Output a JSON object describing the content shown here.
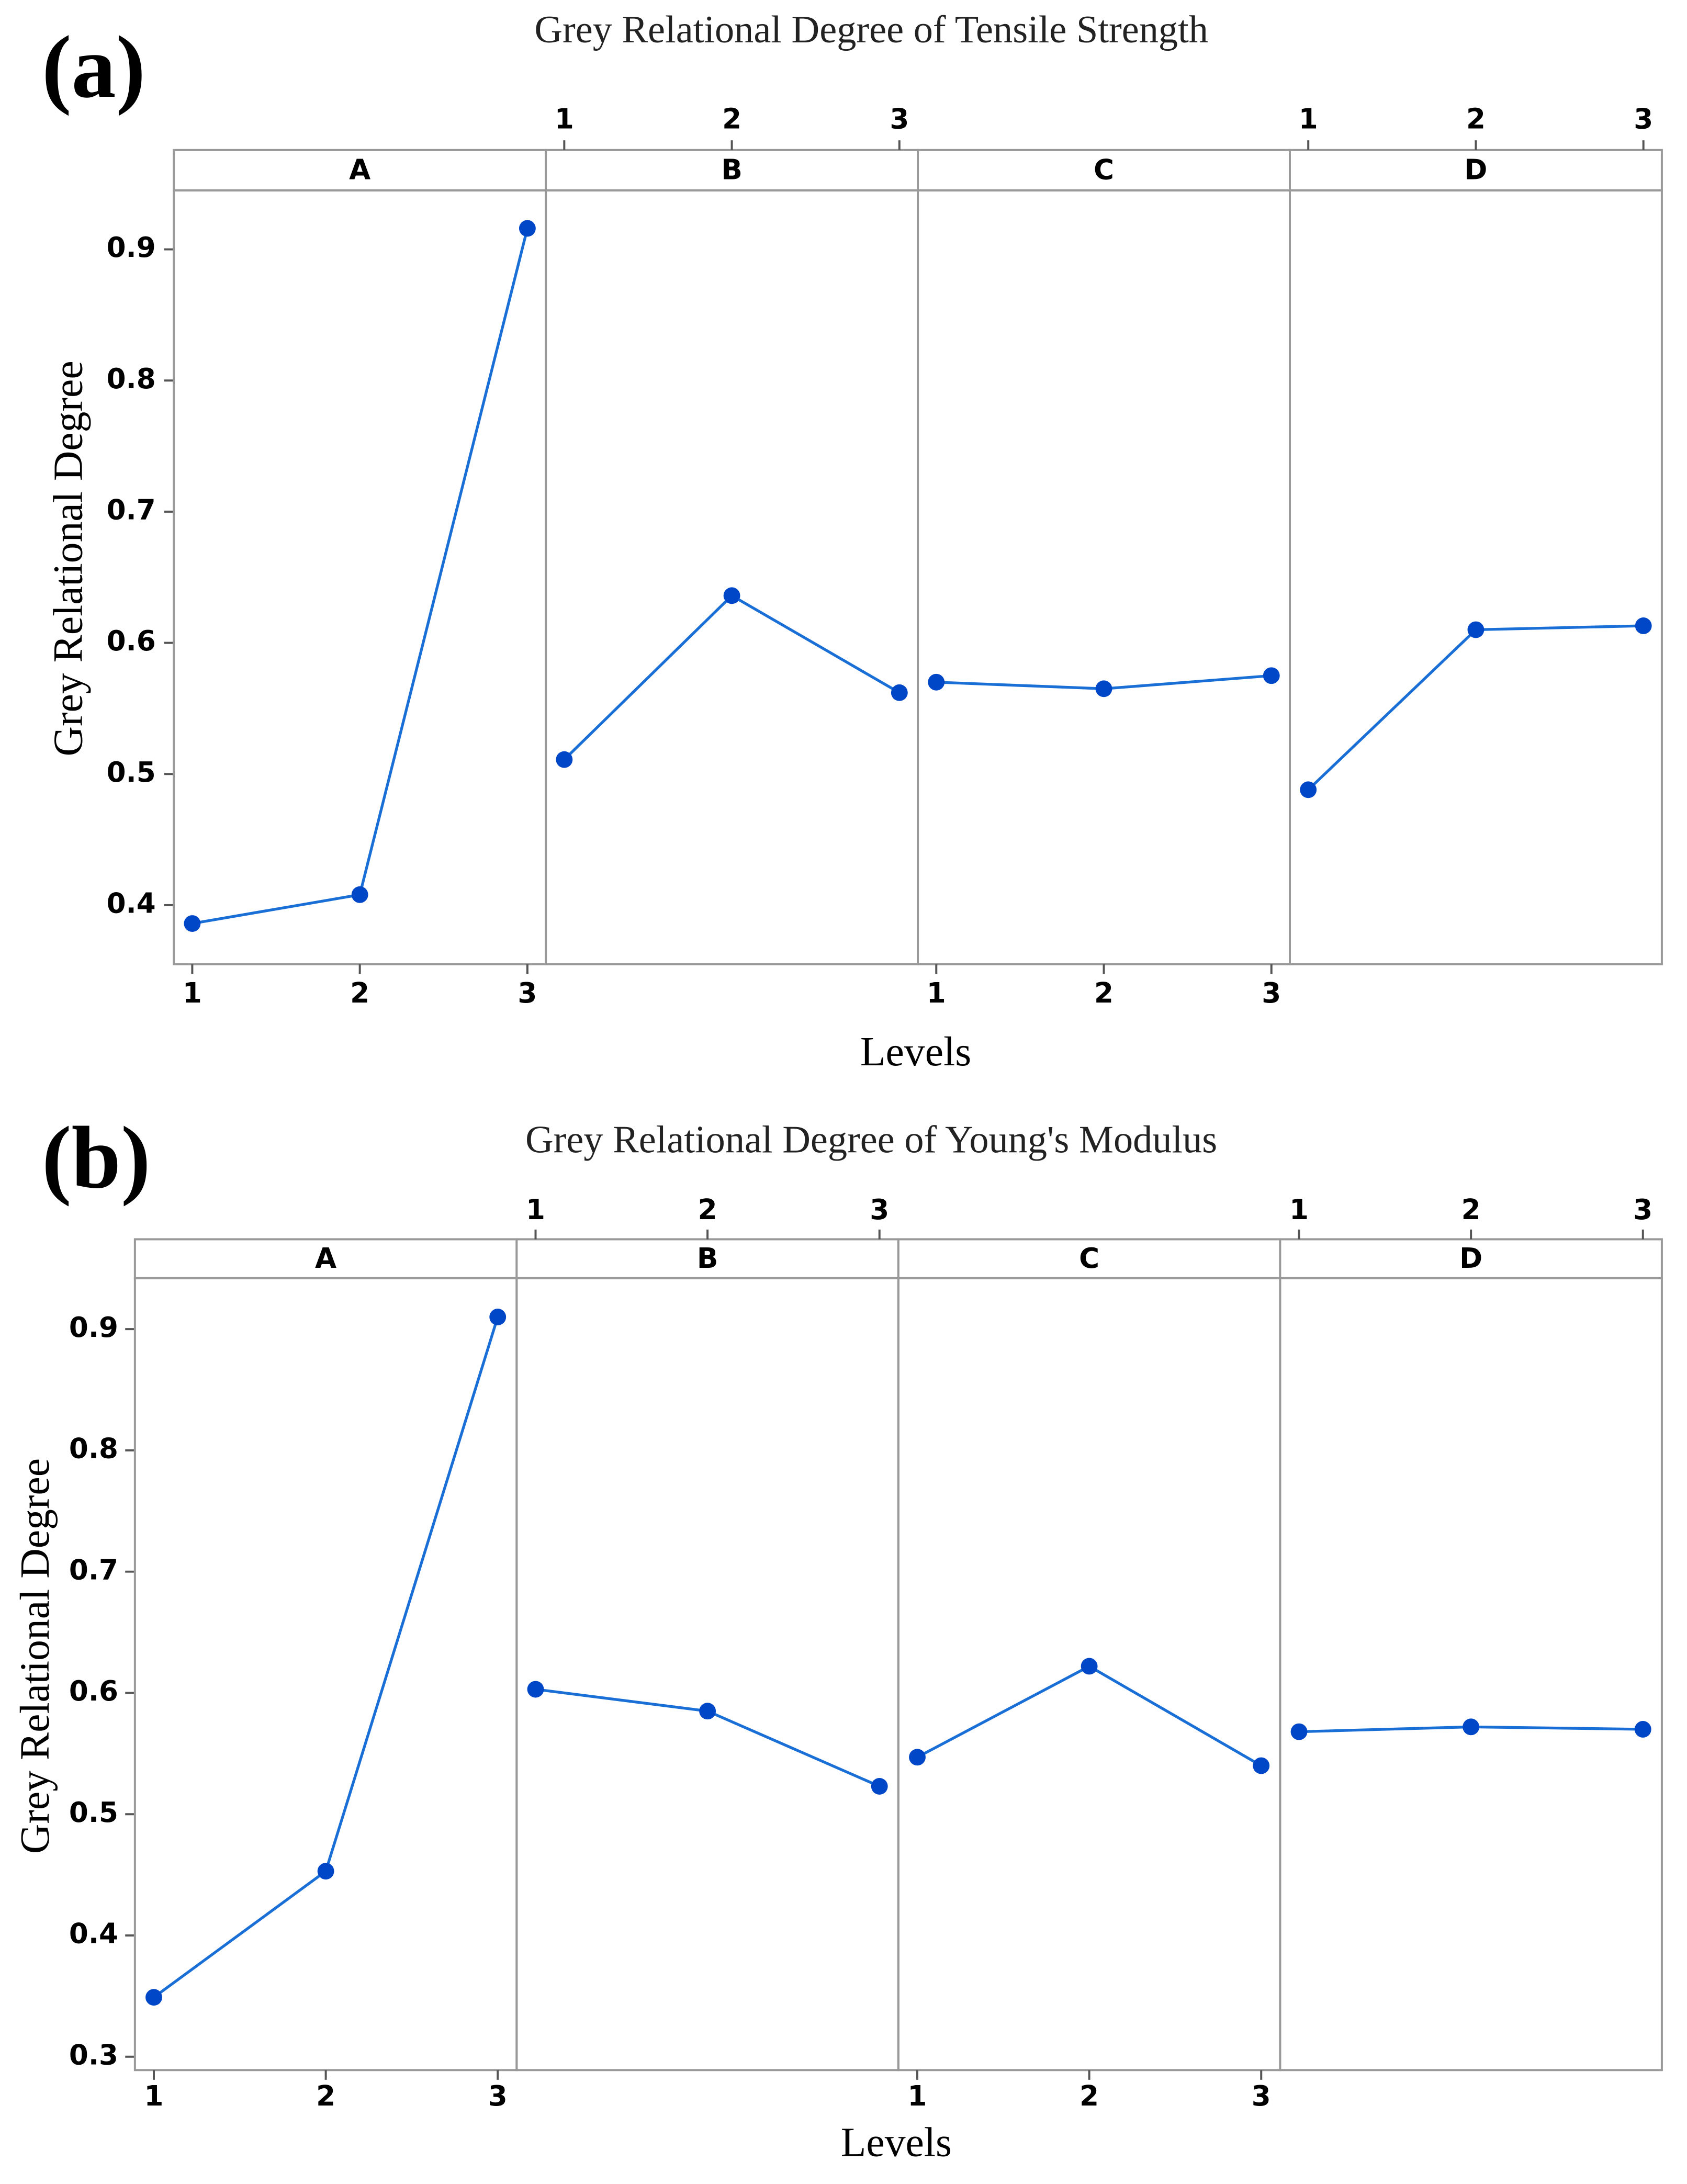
{
  "chart_data": [
    {
      "type": "line",
      "panel_label": "(a)",
      "title": "Grey Relational Degree of Tensile Strength",
      "xlabel": "Levels",
      "ylabel": "Grey Relational Degree",
      "x": [
        1,
        2,
        3
      ],
      "xticks": [
        1,
        2,
        3
      ],
      "xlim": [
        0.89,
        3.11
      ],
      "ylim": [
        0.355,
        0.945
      ],
      "yticks": [
        0.4,
        0.5,
        0.6,
        0.7,
        0.8,
        0.9
      ],
      "color": "#1a6fd6",
      "marker_color": "#0047c8",
      "panels": [
        {
          "name": "A",
          "values": [
            0.386,
            0.408,
            0.916
          ]
        },
        {
          "name": "B",
          "values": [
            0.511,
            0.636,
            0.562
          ]
        },
        {
          "name": "C",
          "values": [
            0.57,
            0.565,
            0.575
          ]
        },
        {
          "name": "D",
          "values": [
            0.488,
            0.61,
            0.613
          ]
        }
      ]
    },
    {
      "type": "line",
      "panel_label": "(b)",
      "title": "Grey Relational Degree of Young's Modulus",
      "xlabel": "Levels",
      "ylabel": "Grey Relational Degree",
      "x": [
        1,
        2,
        3
      ],
      "xticks": [
        1,
        2,
        3
      ],
      "xlim": [
        0.89,
        3.11
      ],
      "ylim": [
        0.289,
        0.942
      ],
      "yticks": [
        0.3,
        0.4,
        0.5,
        0.6,
        0.7,
        0.8,
        0.9
      ],
      "color": "#1a6fd6",
      "marker_color": "#0047c8",
      "panels": [
        {
          "name": "A",
          "values": [
            0.349,
            0.453,
            0.91
          ]
        },
        {
          "name": "B",
          "values": [
            0.603,
            0.585,
            0.523
          ]
        },
        {
          "name": "C",
          "values": [
            0.547,
            0.622,
            0.54
          ]
        },
        {
          "name": "D",
          "values": [
            0.568,
            0.572,
            0.57
          ]
        }
      ]
    }
  ]
}
